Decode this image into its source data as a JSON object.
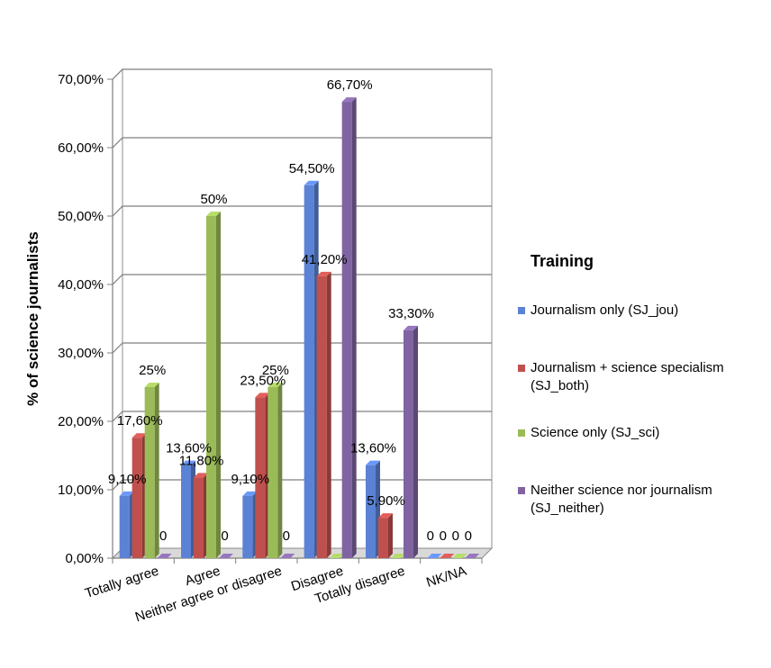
{
  "chart_data": {
    "type": "bar",
    "title": "",
    "xlabel": "",
    "ylabel": "% of science journalists",
    "ylim": [
      0,
      70
    ],
    "yticks": [
      "0,00%",
      "10,00%",
      "20,00%",
      "30,00%",
      "40,00%",
      "50,00%",
      "60,00%",
      "70,00%"
    ],
    "grid": true,
    "legend_title": "Training",
    "legend_position": "right",
    "categories": [
      "Totally agree",
      "Agree",
      "Neither agree or disagree",
      "Disagree",
      "Totally disagree",
      "NK/NA"
    ],
    "series": [
      {
        "name": "Journalism only (SJ_jou)",
        "color": "#5b82d4",
        "values": [
          9.1,
          13.6,
          9.1,
          54.5,
          13.6,
          0
        ],
        "labels": [
          "9,10%",
          "13,60%",
          "9,10%",
          "54,50%",
          "13,60%",
          "0"
        ]
      },
      {
        "name": "Journalism + science specialism (SJ_both)",
        "color": "#c0504d",
        "values": [
          17.6,
          11.8,
          23.5,
          41.2,
          5.9,
          0
        ],
        "labels": [
          "17,60%",
          "11,80%",
          "23,50%",
          "41,20%",
          "5,90%",
          "0"
        ]
      },
      {
        "name": "Science only (SJ_sci)",
        "color": "#9bbb59",
        "values": [
          25,
          50,
          25,
          0,
          0,
          0
        ],
        "labels": [
          "25%",
          "50%",
          "25%",
          "",
          "",
          "0"
        ]
      },
      {
        "name": "Neither science nor journalism (SJ_neither)",
        "color": "#8064a2",
        "values": [
          0,
          0,
          0,
          66.7,
          33.3,
          0
        ],
        "labels": [
          "0",
          "0",
          "0",
          "66,70%",
          "33,30%",
          "0"
        ]
      }
    ],
    "zero_labels": [
      "0",
      "0",
      "0",
      "0",
      "0"
    ]
  }
}
